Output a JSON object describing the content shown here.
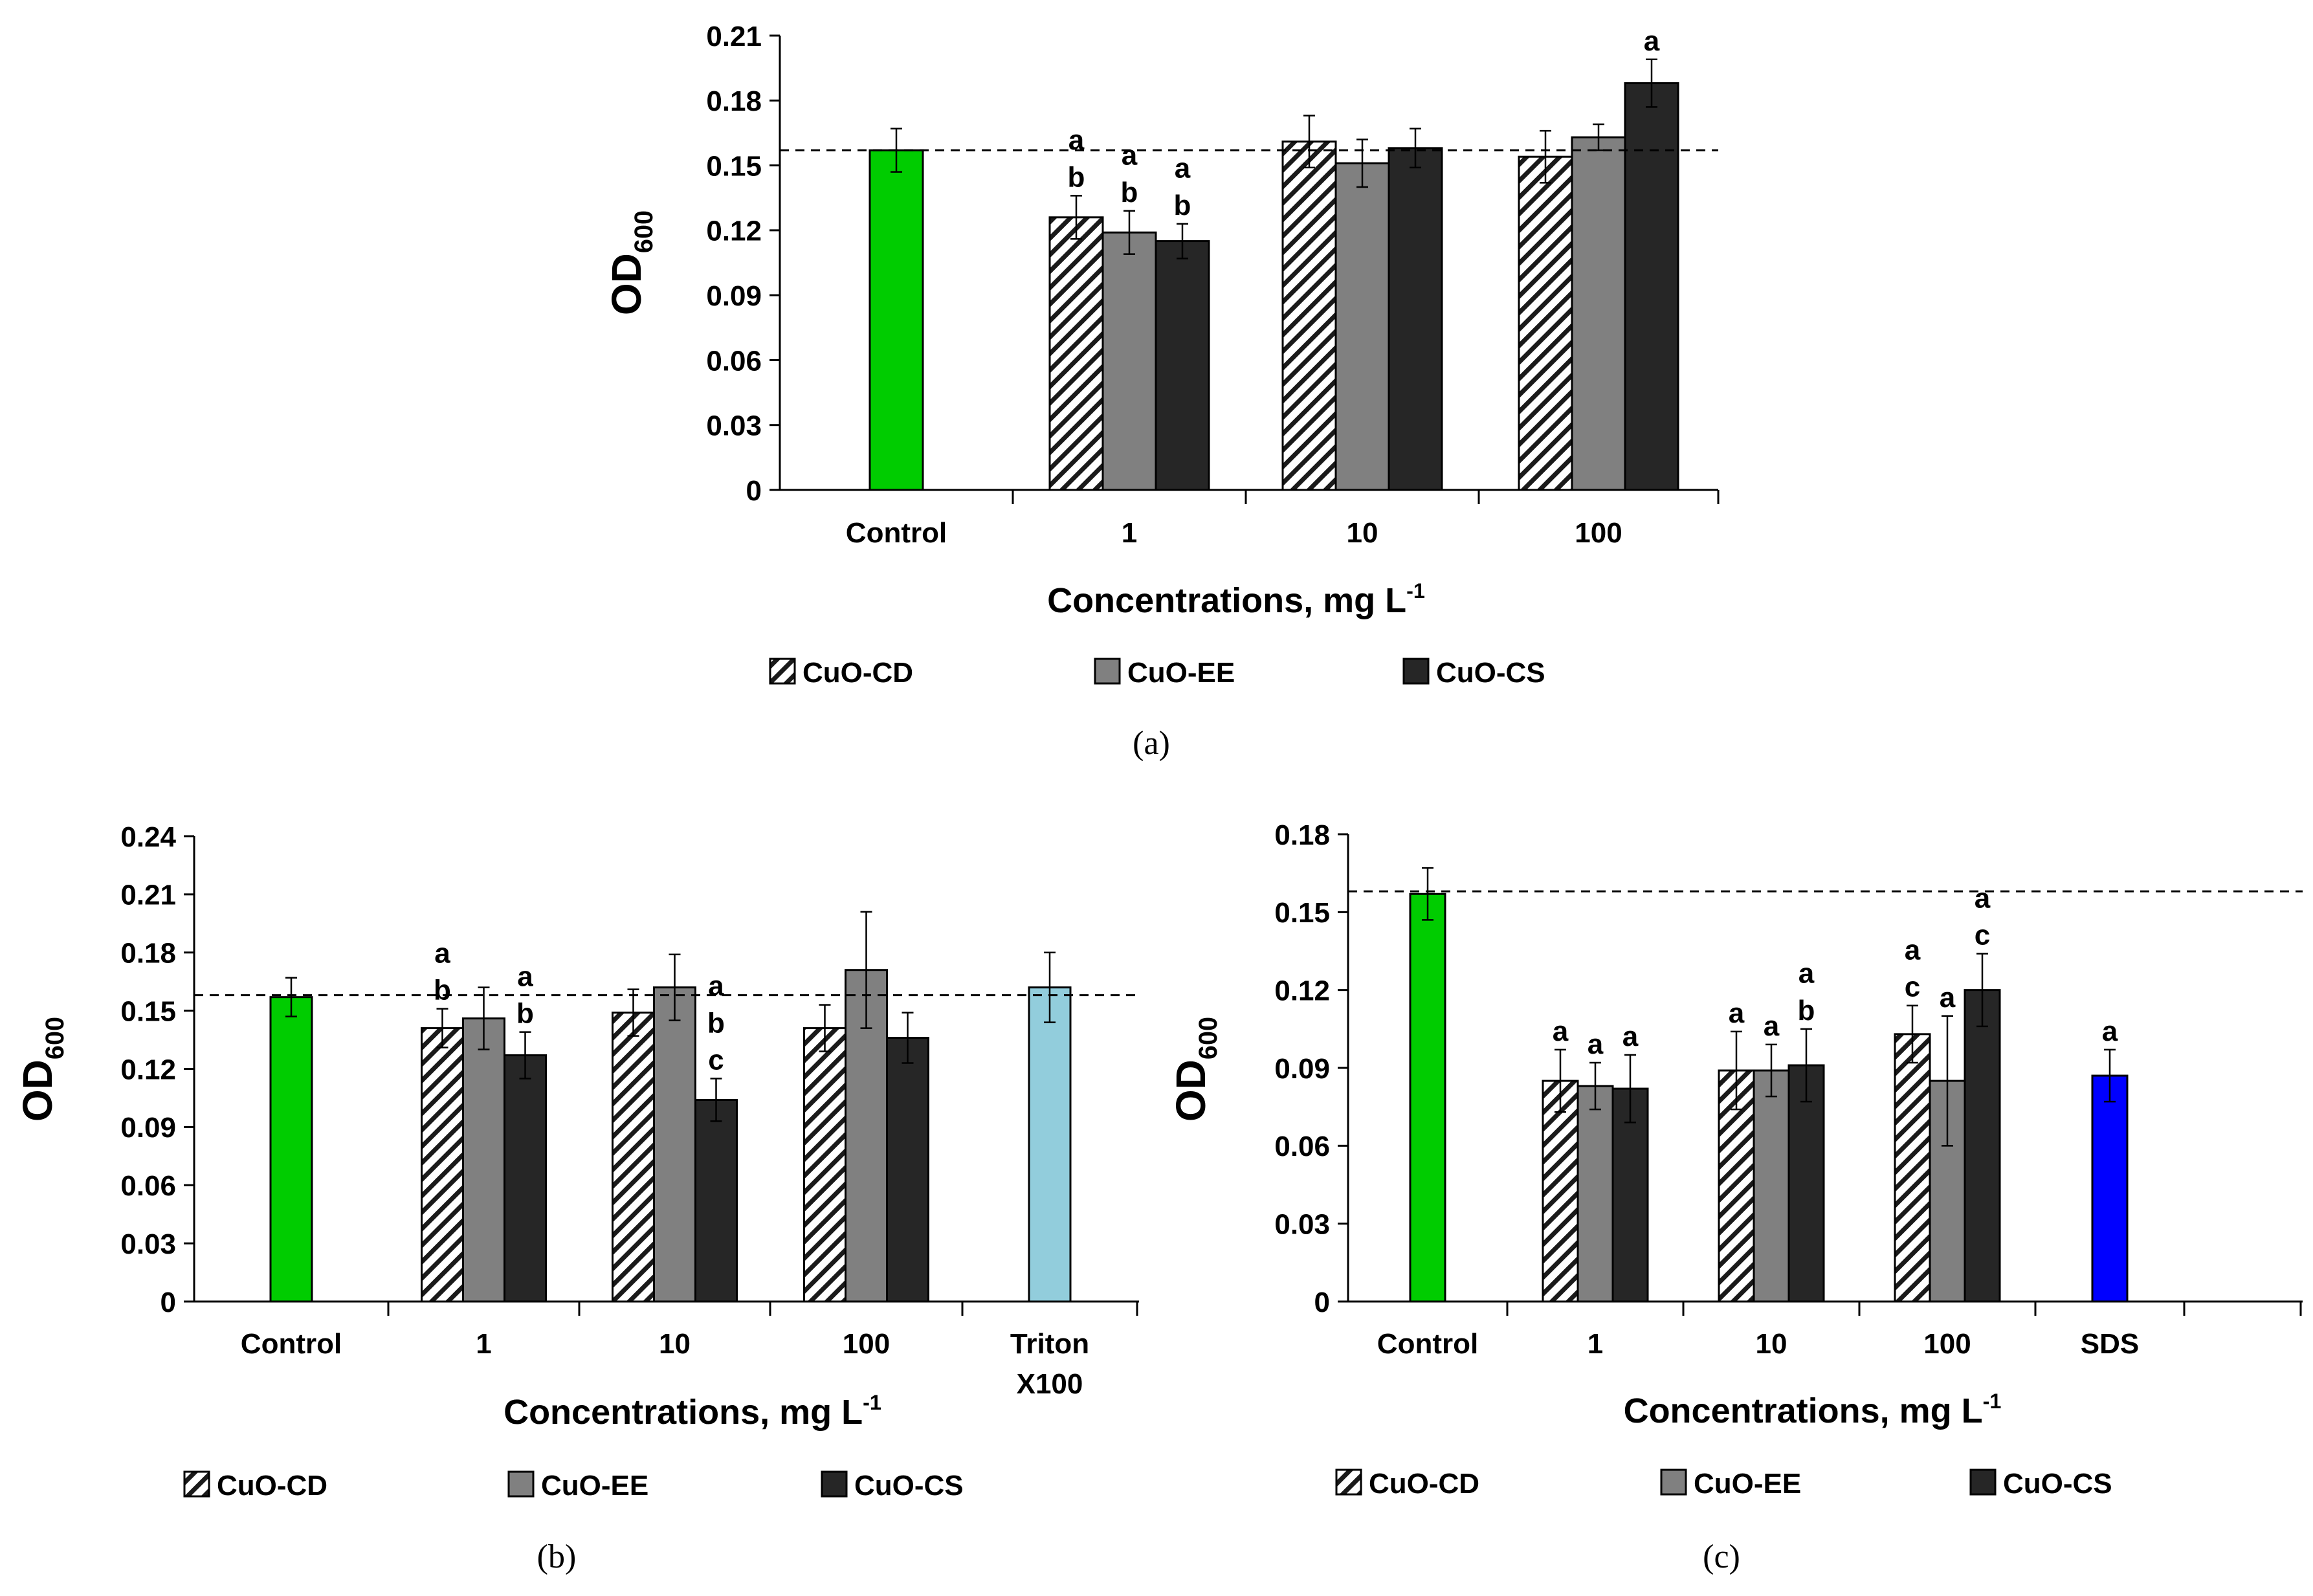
{
  "colors": {
    "control": "#00CC00",
    "triton": "#92CDDC",
    "sds": "#0000FF",
    "cuo_cd_face": "#FFFFFF",
    "cuo_ee": "#808080",
    "cuo_cs": "#262626",
    "stroke": "#000000"
  },
  "legend": {
    "items": [
      {
        "name": "CuO-CD",
        "pattern": "hatch"
      },
      {
        "name": "CuO-EE",
        "pattern": "gray"
      },
      {
        "name": "CuO-CS",
        "pattern": "dark"
      }
    ]
  },
  "chart_data": [
    {
      "panel": "a",
      "caption": "(a)",
      "type": "bar",
      "ylabel_main": "OD",
      "ylabel_sub": "600",
      "xlabel_main": "Concentrations, mg L",
      "xlabel_sup": "-1",
      "ylim": [
        0,
        0.21
      ],
      "yticks": [
        "0",
        "0.03",
        "0.06",
        "0.09",
        "0.12",
        "0.15",
        "0.18",
        "0.21"
      ],
      "reference_line": 0.157,
      "groups": [
        {
          "label": "Control",
          "bars": [
            {
              "series": "Control",
              "value": 0.157,
              "error": 0.01,
              "letters": []
            }
          ]
        },
        {
          "label": "1",
          "bars": [
            {
              "series": "CuO-CD",
              "value": 0.126,
              "error": 0.01,
              "letters": [
                "a",
                "b"
              ]
            },
            {
              "series": "CuO-EE",
              "value": 0.119,
              "error": 0.01,
              "letters": [
                "a",
                "b"
              ]
            },
            {
              "series": "CuO-CS",
              "value": 0.115,
              "error": 0.008,
              "letters": [
                "a",
                "b"
              ]
            }
          ]
        },
        {
          "label": "10",
          "bars": [
            {
              "series": "CuO-CD",
              "value": 0.161,
              "error": 0.012,
              "letters": []
            },
            {
              "series": "CuO-EE",
              "value": 0.151,
              "error": 0.011,
              "letters": []
            },
            {
              "series": "CuO-CS",
              "value": 0.158,
              "error": 0.009,
              "letters": []
            }
          ]
        },
        {
          "label": "100",
          "bars": [
            {
              "series": "CuO-CD",
              "value": 0.154,
              "error": 0.012,
              "letters": []
            },
            {
              "series": "CuO-EE",
              "value": 0.163,
              "error": 0.006,
              "letters": []
            },
            {
              "series": "CuO-CS",
              "value": 0.188,
              "error": 0.011,
              "letters": [
                "a"
              ]
            }
          ]
        }
      ]
    },
    {
      "panel": "b",
      "caption": "(b)",
      "type": "bar",
      "ylabel_main": "OD",
      "ylabel_sub": "600",
      "xlabel_main": "Concentrations, mg L",
      "xlabel_sup": "-1",
      "ylim": [
        0,
        0.24
      ],
      "yticks": [
        "0",
        "0.03",
        "0.06",
        "0.09",
        "0.12",
        "0.15",
        "0.18",
        "0.21",
        "0.24"
      ],
      "reference_line": 0.158,
      "groups": [
        {
          "label": "Control",
          "bars": [
            {
              "series": "Control",
              "value": 0.157,
              "error": 0.01,
              "letters": []
            }
          ]
        },
        {
          "label": "1",
          "bars": [
            {
              "series": "CuO-CD",
              "value": 0.141,
              "error": 0.01,
              "letters": [
                "a",
                "b"
              ]
            },
            {
              "series": "CuO-EE",
              "value": 0.146,
              "error": 0.016,
              "letters": []
            },
            {
              "series": "CuO-CS",
              "value": 0.127,
              "error": 0.012,
              "letters": [
                "a",
                "b"
              ]
            }
          ]
        },
        {
          "label": "10",
          "bars": [
            {
              "series": "CuO-CD",
              "value": 0.149,
              "error": 0.012,
              "letters": []
            },
            {
              "series": "CuO-EE",
              "value": 0.162,
              "error": 0.017,
              "letters": []
            },
            {
              "series": "CuO-CS",
              "value": 0.104,
              "error": 0.011,
              "letters": [
                "a",
                "b",
                "c"
              ]
            }
          ]
        },
        {
          "label": "100",
          "bars": [
            {
              "series": "CuO-CD",
              "value": 0.141,
              "error": 0.012,
              "letters": []
            },
            {
              "series": "CuO-EE",
              "value": 0.171,
              "error": 0.03,
              "letters": []
            },
            {
              "series": "CuO-CS",
              "value": 0.136,
              "error": 0.013,
              "letters": []
            }
          ]
        },
        {
          "label": "Triton X100",
          "label_lines": [
            "Triton",
            "X100"
          ],
          "bars": [
            {
              "series": "Triton X100",
              "value": 0.162,
              "error": 0.018,
              "letters": []
            }
          ]
        }
      ]
    },
    {
      "panel": "c",
      "caption": "(c)",
      "type": "bar",
      "ylabel_main": "OD",
      "ylabel_sub": "600",
      "xlabel_main": "Concentrations, mg L",
      "xlabel_sup": "-1",
      "ylim": [
        0,
        0.18
      ],
      "yticks": [
        "0",
        "0.03",
        "0.06",
        "0.09",
        "0.12",
        "0.15",
        "0.18"
      ],
      "reference_line": 0.158,
      "groups": [
        {
          "label": "Control",
          "bars": [
            {
              "series": "Control",
              "value": 0.157,
              "error": 0.01,
              "letters": []
            }
          ]
        },
        {
          "label": "1",
          "bars": [
            {
              "series": "CuO-CD",
              "value": 0.085,
              "error": 0.012,
              "letters": [
                "a"
              ]
            },
            {
              "series": "CuO-EE",
              "value": 0.083,
              "error": 0.009,
              "letters": [
                "a"
              ]
            },
            {
              "series": "CuO-CS",
              "value": 0.082,
              "error": 0.013,
              "letters": [
                "a"
              ]
            }
          ]
        },
        {
          "label": "10",
          "bars": [
            {
              "series": "CuO-CD",
              "value": 0.089,
              "error": 0.015,
              "letters": [
                "a"
              ]
            },
            {
              "series": "CuO-EE",
              "value": 0.089,
              "error": 0.01,
              "letters": [
                "a"
              ]
            },
            {
              "series": "CuO-CS",
              "value": 0.091,
              "error": 0.014,
              "letters": [
                "a",
                "b"
              ]
            }
          ]
        },
        {
          "label": "100",
          "bars": [
            {
              "series": "CuO-CD",
              "value": 0.103,
              "error": 0.011,
              "letters": [
                "a",
                "c"
              ]
            },
            {
              "series": "CuO-EE",
              "value": 0.085,
              "error": 0.025,
              "letters": [
                "a"
              ]
            },
            {
              "series": "CuO-CS",
              "value": 0.12,
              "error": 0.014,
              "letters": [
                "a",
                "c"
              ]
            }
          ]
        },
        {
          "label": "SDS",
          "bars": [
            {
              "series": "SDS",
              "value": 0.087,
              "error": 0.01,
              "letters": [
                "a"
              ]
            }
          ]
        },
        {
          "label": "",
          "bars": []
        }
      ]
    }
  ]
}
